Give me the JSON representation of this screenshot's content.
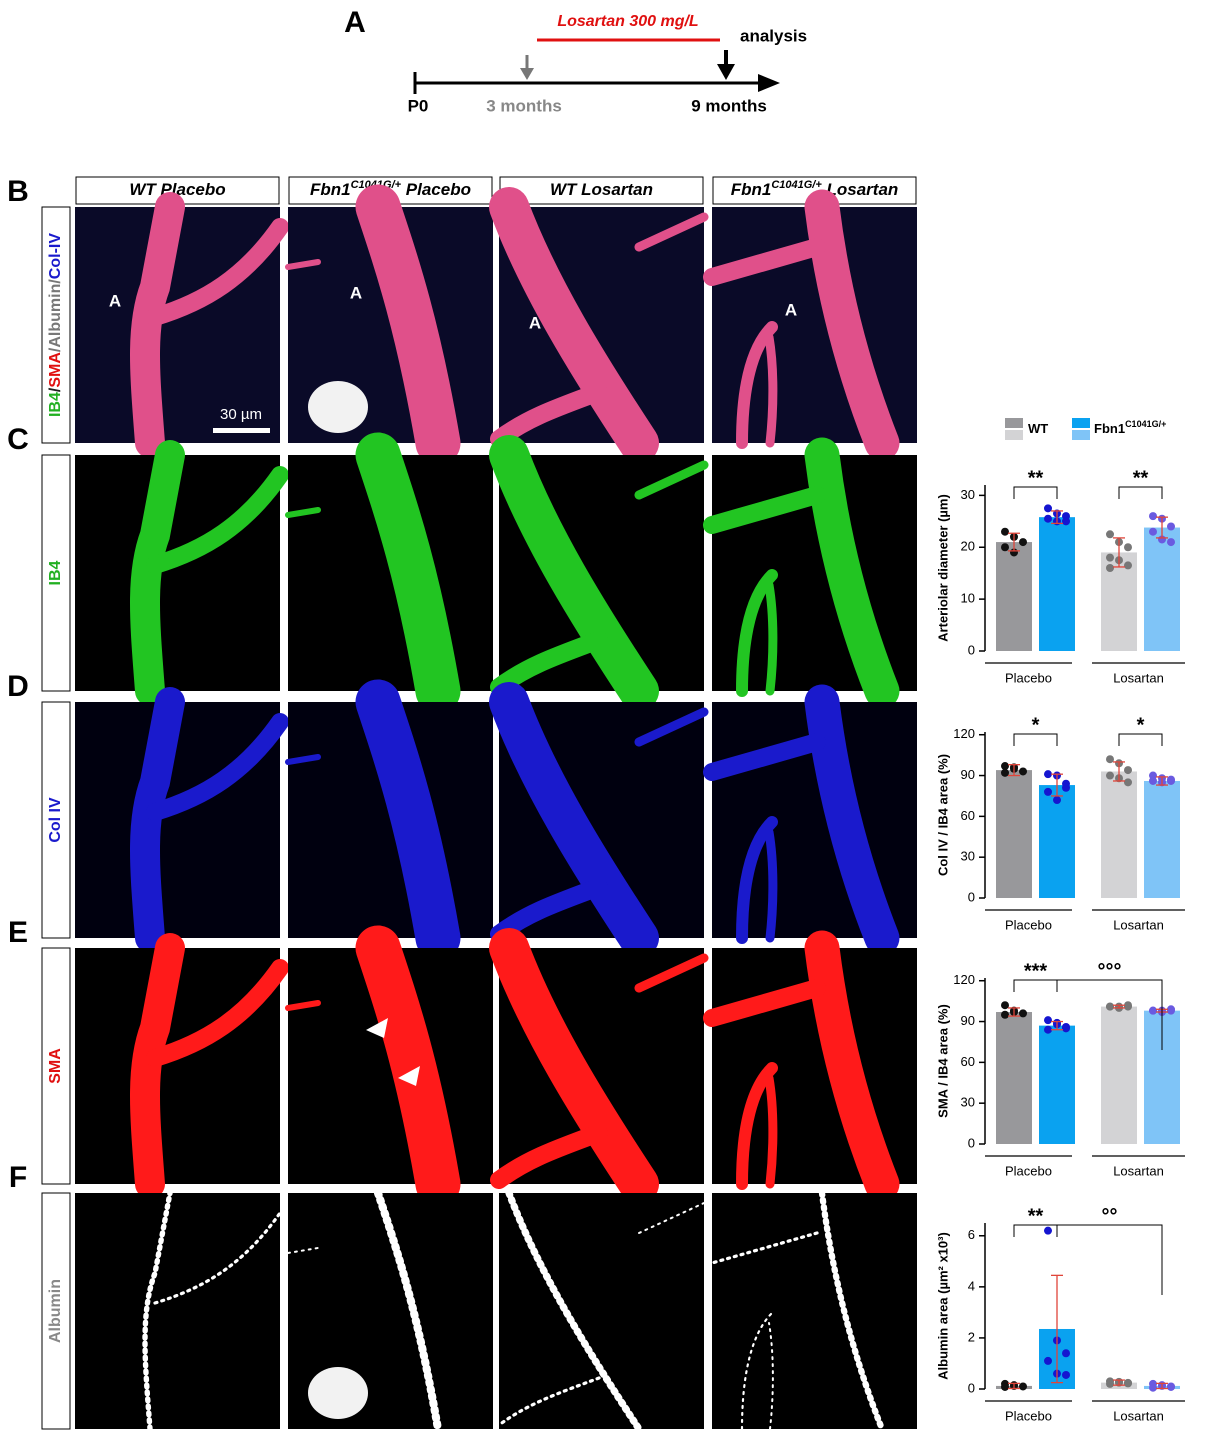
{
  "panel_a": {
    "letter": "A",
    "treatment": "Losartan 300 mg/L",
    "analysis": "analysis",
    "t0": "P0",
    "t1": "3 months",
    "t2": "9 months"
  },
  "panel_letters": [
    "B",
    "C",
    "D",
    "E",
    "F"
  ],
  "column_headers": [
    {
      "text": "WT Placebo"
    },
    {
      "text": "Fbn1",
      "sup": "C1041G/+",
      "tail": " Placebo"
    },
    {
      "text": "WT Losartan"
    },
    {
      "text": "Fbn1",
      "sup": "C1041G/+",
      "tail": " Losartan"
    }
  ],
  "row_labels": [
    {
      "parts": [
        {
          "text": "IB4",
          "color": "#22b022"
        },
        {
          "text": "/",
          "color": "#222222"
        },
        {
          "text": "SMA",
          "color": "#e01010"
        },
        {
          "text": "/Albumin/",
          "color": "#777777"
        },
        {
          "text": "Col-IV",
          "color": "#1a1acc"
        }
      ]
    },
    {
      "parts": [
        {
          "text": "IB4",
          "color": "#22b022"
        }
      ]
    },
    {
      "parts": [
        {
          "text": "Col IV",
          "color": "#1a1acc"
        }
      ]
    },
    {
      "parts": [
        {
          "text": "SMA",
          "color": "#e01010"
        }
      ]
    },
    {
      "parts": [
        {
          "text": "Albumin",
          "color": "#888888"
        }
      ]
    }
  ],
  "image_labels": {
    "artery": "A",
    "scale_bar": "30 µm"
  },
  "chart_data": [
    {
      "type": "bar",
      "y_label": "Arteriolar diameter (µm)",
      "categories": [
        "Placebo",
        "Losartan"
      ],
      "ylim": [
        0,
        32
      ],
      "yticks": [
        0,
        10,
        20,
        30
      ],
      "error_color": "#e0453a",
      "series": [
        {
          "name": "WT",
          "colors": [
            "#98989b",
            "#d3d3d5"
          ],
          "values": [
            21,
            19
          ],
          "errors": [
            1.7,
            2.8
          ],
          "points": [
            [
              23,
              22,
              21,
              20,
              19
            ],
            [
              22.5,
              21,
              20,
              18,
              17.5,
              16.5,
              16
            ]
          ],
          "point_colors": [
            "#111111",
            "#777777"
          ]
        },
        {
          "name": "Fbn1",
          "name_sup": "C1041G/+",
          "colors": [
            "#0aa2f0",
            "#7fc4f7"
          ],
          "values": [
            25.8,
            23.8
          ],
          "errors": [
            1.2,
            2
          ],
          "points": [
            [
              27.5,
              26.5,
              26,
              25.5,
              25,
              25
            ],
            [
              26,
              25.5,
              24,
              23,
              21.5,
              21
            ]
          ],
          "point_colors": [
            "#1515d0",
            "#6a5ae0"
          ]
        }
      ],
      "annotations": [
        "**",
        "**"
      ]
    },
    {
      "type": "bar",
      "y_label": "Col IV / IB4 area (%)",
      "categories": [
        "Placebo",
        "Losartan"
      ],
      "ylim": [
        0,
        122
      ],
      "yticks": [
        0,
        30,
        60,
        90,
        120
      ],
      "error_color": "#e0453a",
      "series": [
        {
          "colors": [
            "#98989b",
            "#d3d3d5"
          ],
          "values": [
            94,
            93
          ],
          "errors": [
            4,
            7
          ],
          "points": [
            [
              97,
              95,
              93,
              92,
              96
            ],
            [
              102,
              99,
              94,
              90,
              88,
              85
            ]
          ],
          "point_colors": [
            "#111111",
            "#777777"
          ]
        },
        {
          "colors": [
            "#0aa2f0",
            "#7fc4f7"
          ],
          "values": [
            83,
            86
          ],
          "errors": [
            8,
            3
          ],
          "points": [
            [
              91,
              90,
              84,
              78,
              72,
              81
            ],
            [
              90,
              88,
              86,
              86,
              85,
              87
            ]
          ],
          "point_colors": [
            "#1515d0",
            "#6a5ae0"
          ]
        }
      ],
      "annotations": [
        "*",
        "*"
      ]
    },
    {
      "type": "bar",
      "y_label": "SMA / IB4 area (%)",
      "categories": [
        "Placebo",
        "Losartan"
      ],
      "ylim": [
        0,
        122
      ],
      "yticks": [
        0,
        30,
        60,
        90,
        120
      ],
      "error_color": "#e0453a",
      "series": [
        {
          "colors": [
            "#98989b",
            "#d3d3d5"
          ],
          "values": [
            97,
            101
          ],
          "errors": [
            3,
            1
          ],
          "points": [
            [
              102,
              98,
              96,
              95,
              97
            ],
            [
              101,
              101,
              102,
              101,
              100,
              101
            ]
          ],
          "point_colors": [
            "#111111",
            "#777777"
          ]
        },
        {
          "colors": [
            "#0aa2f0",
            "#7fc4f7"
          ],
          "values": [
            87,
            98
          ],
          "errors": [
            3,
            1
          ],
          "points": [
            [
              91,
              89,
              86,
              84,
              88,
              85
            ],
            [
              98,
              98,
              99,
              98,
              97,
              98
            ]
          ],
          "point_colors": [
            "#1515d0",
            "#6a5ae0"
          ]
        }
      ],
      "annotations": [
        "***",
        "°°°"
      ]
    },
    {
      "type": "bar",
      "y_label": "Albumin area (µm² x10³)",
      "categories": [
        "Placebo",
        "Losartan"
      ],
      "ylim": [
        0,
        6.5
      ],
      "yticks": [
        0,
        2,
        4,
        6
      ],
      "error_color": "#e0453a",
      "series": [
        {
          "colors": [
            "#98989b",
            "#d3d3d5"
          ],
          "values": [
            0.12,
            0.25
          ],
          "errors": [
            0.1,
            0.1
          ],
          "points": [
            [
              0.2,
              0.15,
              0.1,
              0.08,
              0.12
            ],
            [
              0.3,
              0.25,
              0.22,
              0.2,
              0.28,
              0.24
            ]
          ],
          "point_colors": [
            "#111111",
            "#777777"
          ]
        },
        {
          "colors": [
            "#0aa2f0",
            "#7fc4f7"
          ],
          "values": [
            2.35,
            0.12
          ],
          "errors": [
            2.1,
            0.1
          ],
          "points": [
            [
              6.2,
              1.9,
              1.4,
              1.1,
              0.6,
              0.55
            ],
            [
              0.2,
              0.15,
              0.1,
              0.05,
              0.12,
              0.08
            ]
          ],
          "point_colors": [
            "#1515d0",
            "#6a5ae0"
          ]
        }
      ],
      "annotations": [
        "**",
        "°°"
      ]
    }
  ]
}
